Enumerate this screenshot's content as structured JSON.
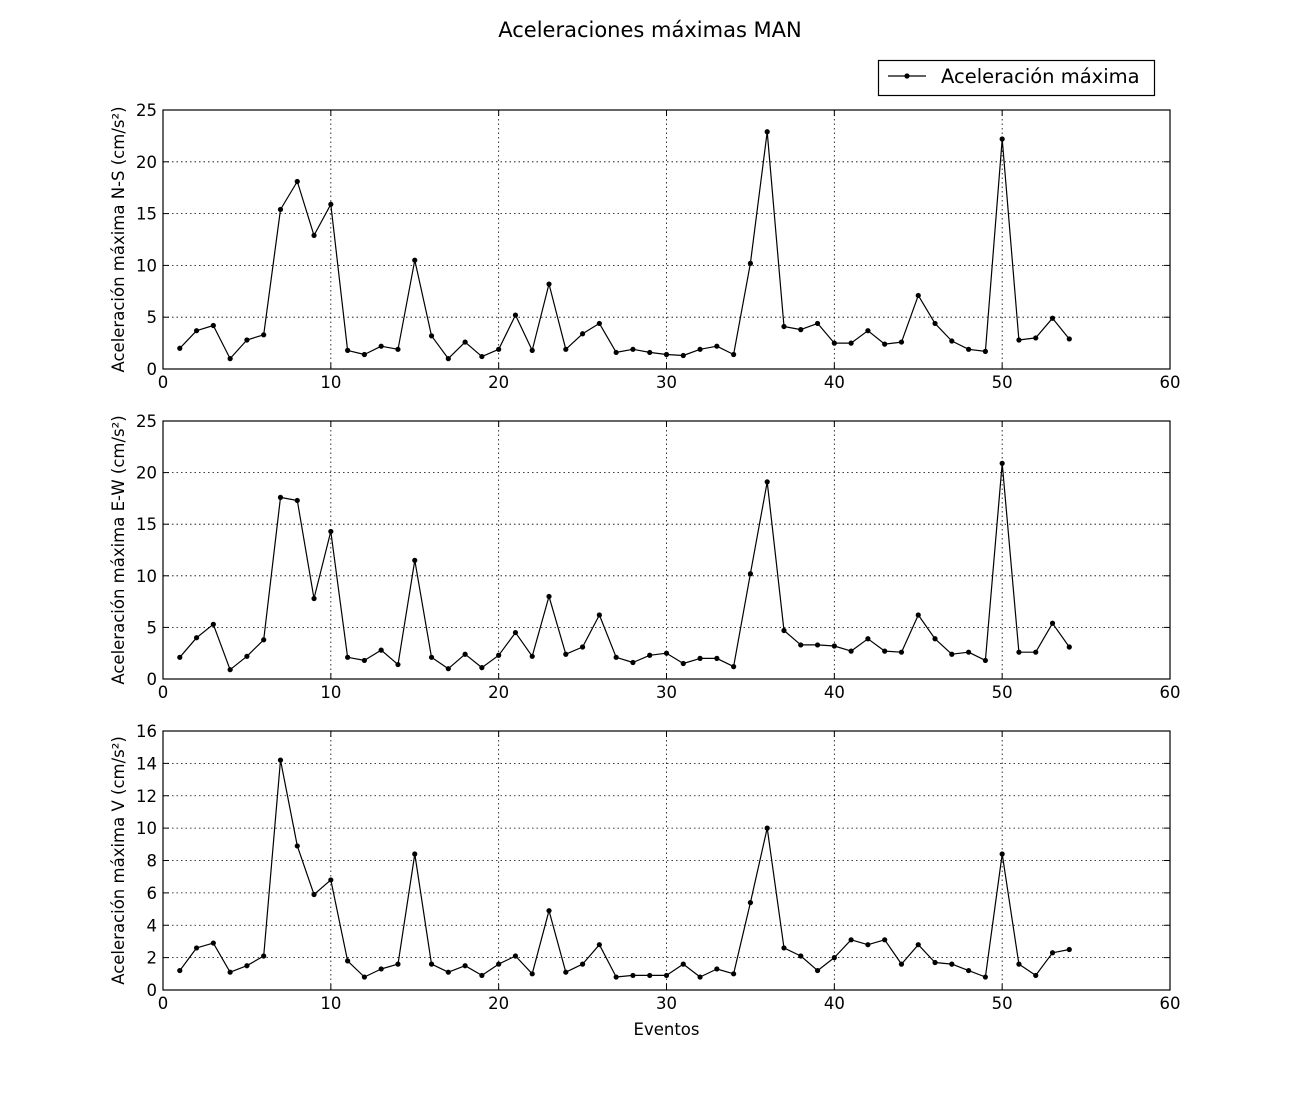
{
  "chart_data": {
    "title": "Aceleraciones máximas MAN",
    "type": "line",
    "legend": {
      "label": "Aceleración máxima",
      "placement": "top-right"
    },
    "xlabel": "Eventos",
    "xlim": [
      0,
      60
    ],
    "xticks": [
      "0",
      "10",
      "20",
      "30",
      "40",
      "50",
      "60"
    ],
    "grid": true,
    "color": "#000000",
    "x": [
      1,
      2,
      3,
      4,
      5,
      6,
      7,
      8,
      9,
      10,
      11,
      12,
      13,
      14,
      15,
      16,
      17,
      18,
      19,
      20,
      21,
      22,
      23,
      24,
      25,
      26,
      27,
      28,
      29,
      30,
      31,
      32,
      33,
      34,
      35,
      36,
      37,
      38,
      39,
      40,
      41,
      42,
      43,
      44,
      45,
      46,
      47,
      48,
      49,
      50,
      51,
      52,
      53,
      54
    ],
    "panels": [
      {
        "ylabel": "Aceleración máxima N-S (cm/s²)",
        "ylim": [
          0,
          25
        ],
        "yticks": [
          "0",
          "5",
          "10",
          "15",
          "20",
          "25"
        ],
        "values": [
          2.0,
          3.7,
          4.2,
          1.0,
          2.8,
          3.3,
          15.4,
          18.1,
          12.9,
          15.9,
          1.8,
          1.4,
          2.2,
          1.9,
          10.5,
          3.2,
          1.0,
          2.6,
          1.2,
          1.9,
          5.2,
          1.8,
          8.2,
          1.9,
          3.4,
          4.4,
          1.6,
          1.9,
          1.6,
          1.4,
          1.3,
          1.9,
          2.2,
          1.4,
          10.2,
          22.9,
          4.1,
          3.8,
          4.4,
          2.5,
          2.5,
          3.7,
          2.4,
          2.6,
          7.1,
          4.4,
          2.7,
          1.9,
          1.7,
          22.2,
          2.8,
          3.0,
          4.9,
          2.9
        ]
      },
      {
        "ylabel": "Aceleración máxima E-W (cm/s²)",
        "ylim": [
          0,
          25
        ],
        "yticks": [
          "0",
          "5",
          "10",
          "15",
          "20",
          "25"
        ],
        "values": [
          2.1,
          4.0,
          5.3,
          0.9,
          2.2,
          3.8,
          17.6,
          17.3,
          7.8,
          14.3,
          2.1,
          1.8,
          2.8,
          1.4,
          11.5,
          2.1,
          1.0,
          2.4,
          1.1,
          2.3,
          4.5,
          2.2,
          8.0,
          2.4,
          3.1,
          6.2,
          2.1,
          1.6,
          2.3,
          2.5,
          1.5,
          2.0,
          2.0,
          1.2,
          10.2,
          19.1,
          4.7,
          3.3,
          3.3,
          3.2,
          2.7,
          3.9,
          2.7,
          2.6,
          6.2,
          3.9,
          2.4,
          2.6,
          1.8,
          20.9,
          2.6,
          2.6,
          5.4,
          3.1
        ]
      },
      {
        "ylabel": "Aceleración máxima V (cm/s²)",
        "ylim": [
          0,
          16
        ],
        "yticks": [
          "0",
          "2",
          "4",
          "6",
          "8",
          "10",
          "12",
          "14",
          "16"
        ],
        "values": [
          1.2,
          2.6,
          2.9,
          1.1,
          1.5,
          2.1,
          14.2,
          8.9,
          5.9,
          6.8,
          1.8,
          0.8,
          1.3,
          1.6,
          8.4,
          1.6,
          1.1,
          1.5,
          0.9,
          1.6,
          2.1,
          1.0,
          4.9,
          1.1,
          1.6,
          2.8,
          0.8,
          0.9,
          0.9,
          0.9,
          1.6,
          0.8,
          1.3,
          1.0,
          5.4,
          10.0,
          2.6,
          2.1,
          1.2,
          2.0,
          3.1,
          2.8,
          3.1,
          1.6,
          2.8,
          1.7,
          1.6,
          1.2,
          0.8,
          8.4,
          1.6,
          0.9,
          2.3,
          2.5
        ]
      }
    ]
  }
}
